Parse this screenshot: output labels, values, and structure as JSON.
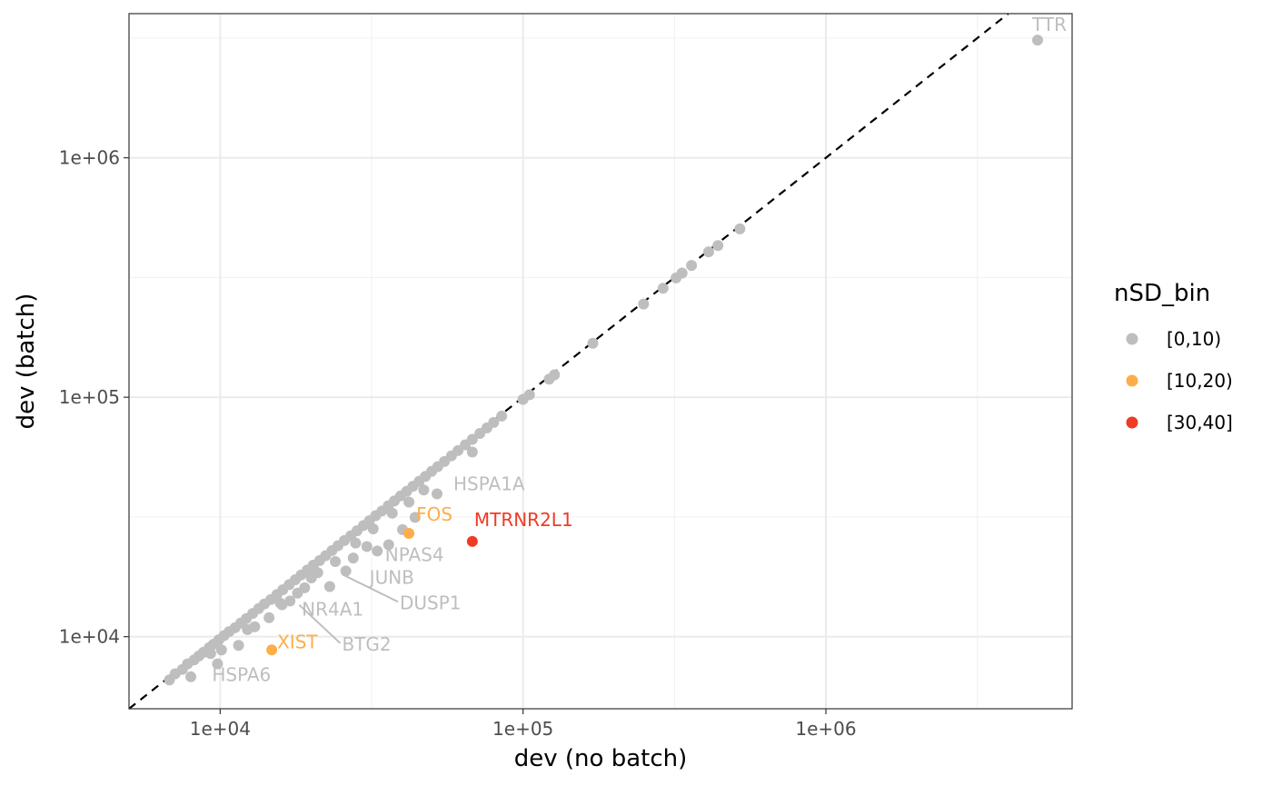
{
  "chart_data": {
    "type": "scatter",
    "xlabel": "dev (no batch)",
    "ylabel": "dev (batch)",
    "x_scale": "log10",
    "y_scale": "log10",
    "xlim": [
      5000,
      6500000
    ],
    "ylim": [
      5000,
      4000000
    ],
    "x_ticks": [
      {
        "value": 10000,
        "label": "1e+04"
      },
      {
        "value": 100000,
        "label": "1e+05"
      },
      {
        "value": 1000000,
        "label": "1e+06"
      }
    ],
    "y_ticks": [
      {
        "value": 10000,
        "label": "1e+04"
      },
      {
        "value": 100000,
        "label": "1e+05"
      },
      {
        "value": 1000000,
        "label": "1e+06"
      }
    ],
    "grid": true,
    "reference_line": {
      "style": "dashed",
      "slope": 1,
      "intercept": 0,
      "color": "#000000"
    },
    "legend": {
      "title": "nSD_bin",
      "position": "right",
      "items": [
        {
          "label": "[0,10)",
          "color": "#bebebe"
        },
        {
          "label": "[10,20)",
          "color": "#fdae4b"
        },
        {
          "label": "[30,40]",
          "color": "#ef3b24"
        }
      ]
    },
    "series": [
      {
        "name": "[0,10)",
        "color": "#bebebe",
        "points": [
          [
            6800,
            6600
          ],
          [
            7100,
            7000
          ],
          [
            7500,
            7300
          ],
          [
            7800,
            7700
          ],
          [
            8200,
            8000
          ],
          [
            8500,
            8300
          ],
          [
            8800,
            8600
          ],
          [
            9200,
            9000
          ],
          [
            9500,
            9300
          ],
          [
            9900,
            9700
          ],
          [
            10300,
            10100
          ],
          [
            10700,
            10500
          ],
          [
            11200,
            10900
          ],
          [
            11700,
            11400
          ],
          [
            12200,
            11900
          ],
          [
            12800,
            12500
          ],
          [
            13400,
            13100
          ],
          [
            14000,
            13700
          ],
          [
            14700,
            14300
          ],
          [
            15400,
            15000
          ],
          [
            16100,
            15700
          ],
          [
            16900,
            16500
          ],
          [
            17700,
            17300
          ],
          [
            18500,
            18100
          ],
          [
            19400,
            19000
          ],
          [
            20300,
            19900
          ],
          [
            21300,
            20800
          ],
          [
            22300,
            21800
          ],
          [
            23400,
            22900
          ],
          [
            24500,
            24000
          ],
          [
            25700,
            25200
          ],
          [
            27000,
            26400
          ],
          [
            28300,
            27700
          ],
          [
            29700,
            29100
          ],
          [
            31100,
            30500
          ],
          [
            32600,
            32000
          ],
          [
            34200,
            33500
          ],
          [
            35900,
            35200
          ],
          [
            37600,
            36900
          ],
          [
            39400,
            38700
          ],
          [
            41300,
            40500
          ],
          [
            43300,
            42500
          ],
          [
            45400,
            44600
          ],
          [
            47600,
            46700
          ],
          [
            49900,
            49000
          ],
          [
            52300,
            51300
          ],
          [
            55000,
            53900
          ],
          [
            58000,
            56900
          ],
          [
            61000,
            59900
          ],
          [
            64500,
            63300
          ],
          [
            68000,
            66700
          ],
          [
            72000,
            70600
          ],
          [
            76000,
            74500
          ],
          [
            80000,
            78500
          ],
          [
            85000,
            83400
          ],
          [
            100000,
            98000
          ],
          [
            105000,
            102500
          ],
          [
            122000,
            119000
          ],
          [
            127000,
            124000
          ],
          [
            170000,
            168000
          ],
          [
            250000,
            245000
          ],
          [
            290000,
            285000
          ],
          [
            320000,
            315000
          ],
          [
            335000,
            330000
          ],
          [
            360000,
            355000
          ],
          [
            410000,
            405000
          ],
          [
            440000,
            430000
          ],
          [
            520000,
            505000
          ],
          [
            8000,
            6800
          ],
          [
            9800,
            7700
          ],
          [
            10100,
            8800
          ],
          [
            9300,
            8500
          ],
          [
            11500,
            9200
          ],
          [
            12300,
            10700
          ],
          [
            13000,
            11000
          ],
          [
            14500,
            12000
          ],
          [
            15800,
            13800
          ],
          [
            17000,
            14100
          ],
          [
            19000,
            16000
          ],
          [
            21000,
            18500
          ],
          [
            23000,
            16200
          ],
          [
            26000,
            18800
          ],
          [
            27500,
            21300
          ],
          [
            30500,
            23800
          ],
          [
            33000,
            22800
          ],
          [
            36000,
            24200
          ],
          [
            40000,
            28000
          ],
          [
            44000,
            31500
          ],
          [
            52000,
            39500
          ],
          [
            68000,
            59000
          ],
          [
            18000,
            15200
          ],
          [
            16000,
            13600
          ],
          [
            20000,
            17600
          ],
          [
            24000,
            20600
          ],
          [
            28000,
            24600
          ],
          [
            32000,
            28200
          ],
          [
            37000,
            32800
          ],
          [
            42000,
            36500
          ],
          [
            47000,
            41000
          ]
        ]
      },
      {
        "name": "[10,20)",
        "color": "#fdae4b",
        "points": [
          [
            42000,
            27000
          ],
          [
            14800,
            8800
          ]
        ]
      },
      {
        "name": "[30,40]",
        "color": "#ef3b24",
        "points": [
          [
            68000,
            25000
          ]
        ]
      }
    ],
    "outlier": {
      "gene": "TTR",
      "x": 5000000,
      "y": 3100000
    },
    "labels": [
      {
        "gene": "TTR",
        "x": 5000000,
        "y": 3100000,
        "color": "#bebebe"
      },
      {
        "gene": "HSPA1A",
        "x": 52000,
        "y": 39500,
        "color": "#bebebe"
      },
      {
        "gene": "FOS",
        "x": 42000,
        "y": 27000,
        "color": "#fdae4b"
      },
      {
        "gene": "MTRNR2L1",
        "x": 68000,
        "y": 25000,
        "color": "#ef3b24"
      },
      {
        "gene": "NPAS4",
        "x": 36000,
        "y": 24200,
        "color": "#bebebe"
      },
      {
        "gene": "JUNB",
        "x": 26000,
        "y": 18800,
        "color": "#bebebe"
      },
      {
        "gene": "DUSP1",
        "x": 25000,
        "y": 18500,
        "color": "#bebebe"
      },
      {
        "gene": "NR4A1",
        "x": 17000,
        "y": 14100,
        "color": "#bebebe"
      },
      {
        "gene": "BTG2",
        "x": 18000,
        "y": 13800,
        "color": "#bebebe"
      },
      {
        "gene": "XIST",
        "x": 14800,
        "y": 8800,
        "color": "#fdae4b"
      },
      {
        "gene": "HSPA6",
        "x": 10000,
        "y": 7700,
        "color": "#bebebe"
      }
    ]
  }
}
